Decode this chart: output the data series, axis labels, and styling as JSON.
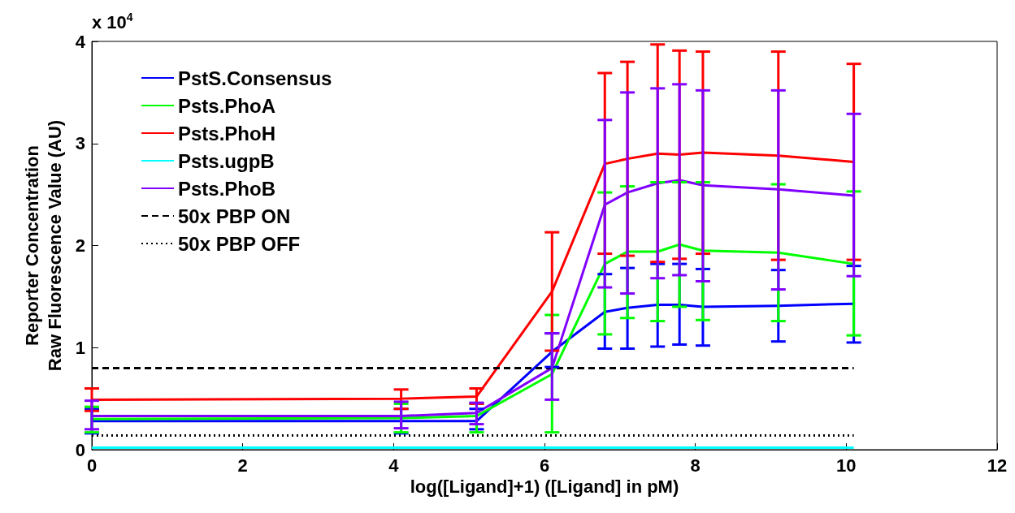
{
  "chart_data": {
    "type": "line",
    "xlabel": "log([Ligand]+1) ([Ligand] in pM)",
    "ylabel": "Reporter Concentration\nRaw Fluorescence Value (AU)",
    "annotations": [
      "x 10$^{4}$"
    ],
    "x": [
      0,
      4.1,
      5.1,
      6.1,
      6.8,
      7.1,
      7.5,
      7.79,
      8.1,
      9.1,
      10.1
    ],
    "xlim": [
      0,
      12
    ],
    "xticks": [
      0,
      2,
      4,
      6,
      8,
      10,
      12
    ],
    "ylim": [
      0,
      4
    ],
    "yticks": [
      0,
      1,
      2,
      3,
      4
    ],
    "grid": false,
    "legend": "top left",
    "marker": "none",
    "line_style": "solid",
    "series": [
      {
        "name": "PstS.Consensus",
        "color": "#0000ff",
        "values": [
          0.28,
          0.28,
          0.28,
          0.96,
          1.35,
          1.39,
          1.42,
          1.42,
          1.4,
          1.41,
          1.43
        ],
        "errors": [
          [
            0.16,
            0.4
          ],
          [
            0.16,
            0.4
          ],
          [
            0.2,
            0.4
          ],
          [
            0.81,
            1.14
          ],
          [
            0.99,
            1.72
          ],
          [
            0.99,
            1.78
          ],
          [
            1.01,
            1.82
          ],
          [
            1.03,
            1.82
          ],
          [
            1.02,
            1.77
          ],
          [
            1.06,
            1.76
          ],
          [
            1.05,
            1.8
          ]
        ]
      },
      {
        "name": "Psts.PhoA",
        "color": "#00ff00",
        "values": [
          0.3,
          0.31,
          0.33,
          0.74,
          1.82,
          1.94,
          1.94,
          2.01,
          1.95,
          1.93,
          1.82
        ],
        "errors": [
          [
            0.17,
            0.42
          ],
          [
            0.17,
            0.45
          ],
          [
            0.17,
            0.45
          ],
          [
            0.17,
            1.32
          ],
          [
            1.13,
            2.52
          ],
          [
            1.29,
            2.58
          ],
          [
            1.26,
            2.62
          ],
          [
            1.4,
            2.62
          ],
          [
            1.27,
            2.62
          ],
          [
            1.26,
            2.6
          ],
          [
            1.12,
            2.53
          ]
        ]
      },
      {
        "name": "Psts.PhoH",
        "color": "#ff0000",
        "values": [
          0.49,
          0.5,
          0.52,
          1.55,
          2.8,
          2.85,
          2.9,
          2.89,
          2.91,
          2.88,
          2.82
        ],
        "errors": [
          [
            0.38,
            0.6
          ],
          [
            0.4,
            0.59
          ],
          [
            0.45,
            0.6
          ],
          [
            0.97,
            2.13
          ],
          [
            1.92,
            3.69
          ],
          [
            1.9,
            3.8
          ],
          [
            1.84,
            3.97
          ],
          [
            1.87,
            3.91
          ],
          [
            1.92,
            3.9
          ],
          [
            1.86,
            3.9
          ],
          [
            1.86,
            3.78
          ]
        ]
      },
      {
        "name": "Psts.ugpB",
        "color": "#00ffff",
        "values": [
          0.02,
          0.02,
          0.02,
          0.02,
          0.02,
          0.02,
          0.02,
          0.02,
          0.02,
          0.02,
          0.02
        ]
      },
      {
        "name": "Psts.PhoB",
        "color": "#8000ff",
        "values": [
          0.33,
          0.33,
          0.36,
          0.8,
          2.4,
          2.52,
          2.61,
          2.64,
          2.59,
          2.55,
          2.49
        ],
        "errors": [
          [
            0.2,
            0.48
          ],
          [
            0.21,
            0.47
          ],
          [
            0.25,
            0.46
          ],
          [
            0.49,
            1.14
          ],
          [
            1.59,
            3.23
          ],
          [
            1.53,
            3.5
          ],
          [
            1.68,
            3.54
          ],
          [
            1.71,
            3.58
          ],
          [
            1.65,
            3.52
          ],
          [
            1.57,
            3.52
          ],
          [
            1.7,
            3.29
          ]
        ]
      },
      {
        "name": "50x PBP ON",
        "color": "#000000",
        "line_style": "dashed",
        "values": [
          0.8,
          0.8,
          0.8,
          0.8,
          0.8,
          0.8,
          0.8,
          0.8,
          0.8,
          0.8,
          0.8
        ]
      },
      {
        "name": "50x PBP OFF",
        "color": "#000000",
        "line_style": "dotted",
        "values": [
          0.14,
          0.14,
          0.14,
          0.14,
          0.14,
          0.14,
          0.14,
          0.14,
          0.14,
          0.14,
          0.14
        ]
      }
    ]
  }
}
